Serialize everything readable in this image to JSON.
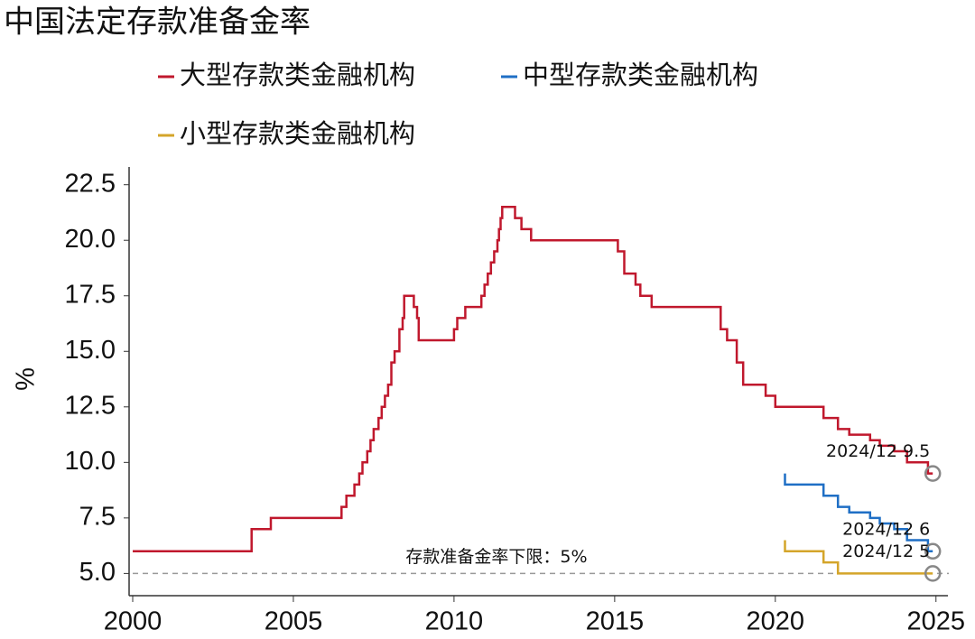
{
  "chart_data": {
    "type": "step-line",
    "title": "中国法定存款准备金率",
    "y_label": "%",
    "xlim": [
      2000,
      2025.4
    ],
    "ylim": [
      4,
      23.3
    ],
    "xticks": [
      2000,
      2005,
      2010,
      2015,
      2020,
      2025
    ],
    "yticks": [
      {
        "value": 5,
        "label": "5.0"
      },
      7.5,
      {
        "value": 10,
        "label": "10.0"
      },
      12.5,
      {
        "value": 15,
        "label": "15.0"
      },
      17.5,
      {
        "value": 20,
        "label": "20.0"
      },
      22.5
    ],
    "hline": {
      "value": 5,
      "label": "存款准备金率下限：5%",
      "color": "#999999"
    },
    "series": [
      {
        "name": "大型存款类金融机构",
        "color": "#c0182d",
        "end_label": "2024/12 9.5",
        "x": [
          2000,
          2003.7,
          2003.7,
          2004.3,
          2004.3,
          2006.5,
          2006.5,
          2006.65,
          2006.65,
          2006.9,
          2006.9,
          2007.05,
          2007.05,
          2007.15,
          2007.15,
          2007.3,
          2007.3,
          2007.4,
          2007.4,
          2007.5,
          2007.5,
          2007.65,
          2007.65,
          2007.75,
          2007.75,
          2007.85,
          2007.85,
          2007.95,
          2007.95,
          2008.05,
          2008.05,
          2008.15,
          2008.15,
          2008.3,
          2008.3,
          2008.4,
          2008.4,
          2008.45,
          2008.45,
          2008.75,
          2008.75,
          2008.85,
          2008.85,
          2008.9,
          2008.9,
          2010.0,
          2010.0,
          2010.1,
          2010.1,
          2010.35,
          2010.35,
          2010.85,
          2010.85,
          2010.95,
          2010.95,
          2011.05,
          2011.05,
          2011.15,
          2011.15,
          2011.25,
          2011.25,
          2011.35,
          2011.35,
          2011.4,
          2011.4,
          2011.45,
          2011.45,
          2011.5,
          2011.5,
          2011.9,
          2011.9,
          2012.1,
          2012.1,
          2012.4,
          2012.4,
          2015.1,
          2015.1,
          2015.3,
          2015.3,
          2015.65,
          2015.65,
          2015.8,
          2015.8,
          2016.15,
          2016.15,
          2018.3,
          2018.3,
          2018.5,
          2018.5,
          2018.8,
          2018.8,
          2019.0,
          2019.0,
          2019.7,
          2019.7,
          2020.0,
          2020.0,
          2021.5,
          2021.5,
          2021.95,
          2021.95,
          2022.3,
          2022.3,
          2022.95,
          2022.95,
          2023.25,
          2023.25,
          2023.7,
          2023.7,
          2024.1,
          2024.1,
          2024.75,
          2024.75,
          2024.9
        ],
        "values": [
          6,
          6,
          7,
          7,
          7.5,
          7.5,
          8,
          8,
          8.5,
          8.5,
          9,
          9,
          9.5,
          9.5,
          10,
          10,
          10.5,
          10.5,
          11,
          11,
          11.5,
          11.5,
          12,
          12,
          12.5,
          12.5,
          13,
          13,
          13.5,
          13.5,
          14.5,
          14.5,
          15,
          15,
          16,
          16,
          16.5,
          16.5,
          17.5,
          17.5,
          17,
          17,
          16.5,
          16.5,
          15.5,
          15.5,
          16,
          16,
          16.5,
          16.5,
          17,
          17,
          17.5,
          17.5,
          18,
          18,
          18.5,
          18.5,
          19,
          19,
          19.5,
          19.5,
          20,
          20,
          20.5,
          20.5,
          21,
          21,
          21.5,
          21.5,
          21,
          21,
          20.5,
          20.5,
          20,
          20,
          19.5,
          19.5,
          18.5,
          18.5,
          18,
          18,
          17.5,
          17.5,
          17,
          17,
          16,
          16,
          15.5,
          15.5,
          14.5,
          14.5,
          13.5,
          13.5,
          13,
          13,
          12.5,
          12.5,
          12,
          12,
          11.5,
          11.5,
          11.25,
          11.25,
          11,
          11,
          10.75,
          10.75,
          10.5,
          10.5,
          10,
          10,
          9.5,
          9.5
        ]
      },
      {
        "name": "中型存款类金融机构",
        "color": "#1f6fc5",
        "end_label": "2024/12 6",
        "x": [
          2020.3,
          2020.3,
          2021.5,
          2021.5,
          2021.95,
          2021.95,
          2022.3,
          2022.3,
          2022.95,
          2022.95,
          2023.25,
          2023.25,
          2023.7,
          2023.7,
          2024.1,
          2024.1,
          2024.75,
          2024.75,
          2024.9
        ],
        "values": [
          9.5,
          9,
          9,
          8.5,
          8.5,
          8,
          8,
          7.75,
          7.75,
          7.5,
          7.5,
          7.25,
          7.25,
          7,
          7,
          6.5,
          6.5,
          6,
          6
        ]
      },
      {
        "name": "小型存款类金融机构",
        "color": "#d4a52a",
        "end_label": "2024/12 5",
        "x": [
          2020.3,
          2020.3,
          2021.5,
          2021.5,
          2021.95,
          2021.95,
          2024.9
        ],
        "values": [
          6.5,
          6,
          6,
          5.5,
          5.5,
          5,
          5
        ]
      }
    ]
  }
}
